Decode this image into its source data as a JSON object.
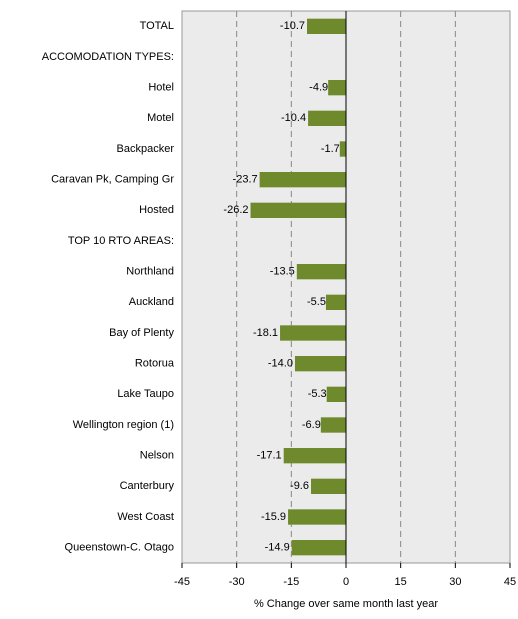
{
  "chart_data": {
    "type": "hbar",
    "categories": [
      "TOTAL",
      "ACCOMODATION TYPES:",
      "Hotel",
      "Motel",
      "Backpacker",
      "Caravan Pk, Camping Gr",
      "Hosted",
      "TOP 10 RTO AREAS:",
      "Northland",
      "Auckland",
      "Bay of Plenty",
      "Rotorua",
      "Lake Taupo",
      "Wellington region (1)",
      "Nelson",
      "Canterbury",
      "West Coast",
      "Queenstown-C. Otago"
    ],
    "values": [
      -10.7,
      null,
      -4.9,
      -10.4,
      -1.7,
      -23.7,
      -26.2,
      null,
      -13.5,
      -5.5,
      -18.1,
      -14.0,
      -5.3,
      -6.9,
      -17.1,
      -9.6,
      -15.9,
      -14.9
    ],
    "value_labels": [
      "-10.7",
      null,
      "-4.9",
      "-10.4",
      "-1.7",
      "-23.7",
      "-26.2",
      null,
      "-13.5",
      "-5.5",
      "-18.1",
      "-14.0",
      "-5.3",
      "-6.9",
      "-17.1",
      "-9.6",
      "-15.9",
      "-14.9"
    ],
    "color": "#6f8a2c",
    "xlabel": "% Change over same month last year",
    "xlim": [
      -45,
      45
    ],
    "xticks": [
      -45,
      -30,
      -15,
      0,
      15,
      30,
      45
    ],
    "grid": true
  }
}
